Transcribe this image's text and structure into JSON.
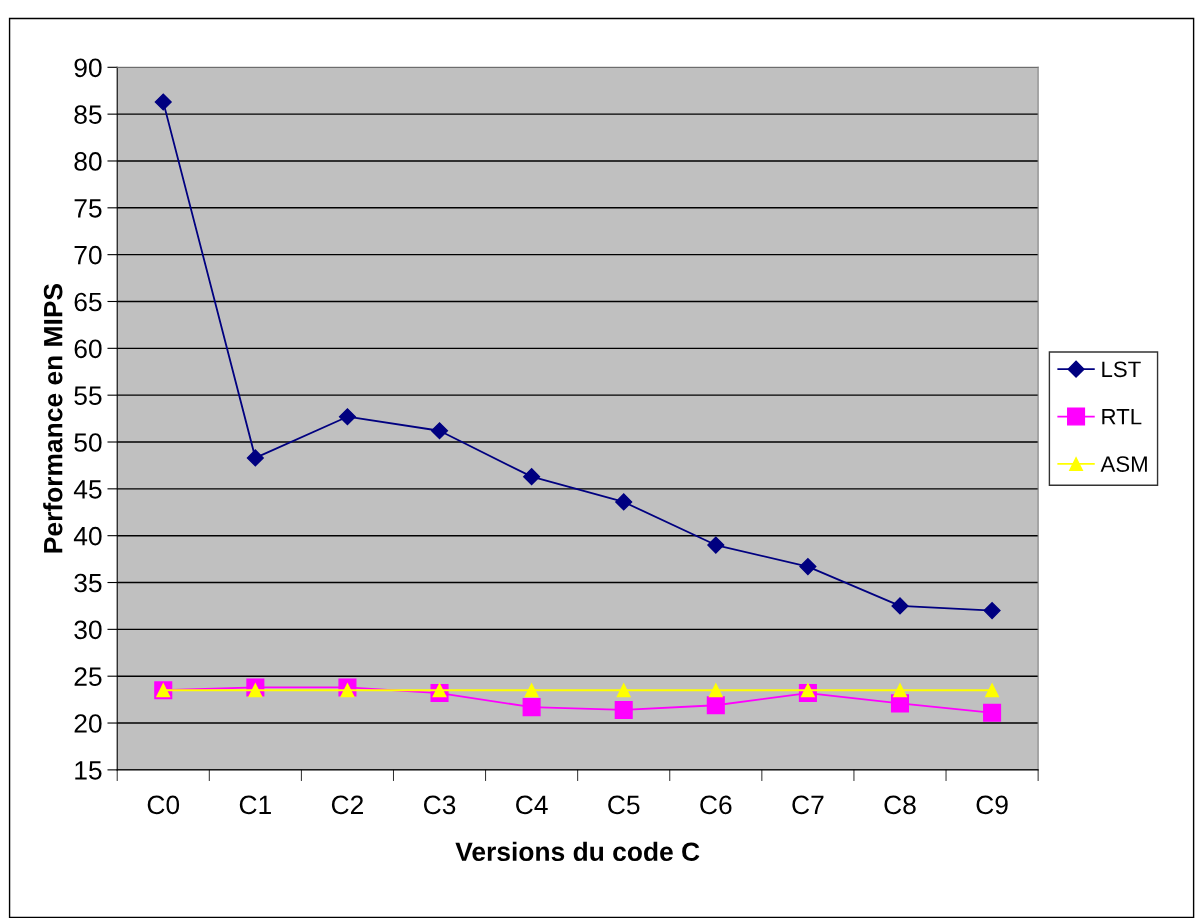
{
  "chart_data": {
    "type": "line",
    "xlabel": "Versions du code C",
    "ylabel": "Performance en MIPS",
    "categories": [
      "C0",
      "C1",
      "C2",
      "C3",
      "C4",
      "C5",
      "C6",
      "C7",
      "C8",
      "C9"
    ],
    "series": [
      {
        "name": "LST",
        "color": "#000080",
        "marker": "diamond",
        "values": [
          86.3,
          48.3,
          52.7,
          51.2,
          46.3,
          43.6,
          39.0,
          36.7,
          32.5,
          32.0
        ]
      },
      {
        "name": "RTL",
        "color": "#ff00ff",
        "marker": "square",
        "values": [
          23.5,
          23.8,
          23.8,
          23.2,
          21.7,
          21.4,
          21.9,
          23.2,
          22.1,
          21.1
        ]
      },
      {
        "name": "ASM",
        "color": "#ffff00",
        "marker": "triangle",
        "values": [
          23.5,
          23.5,
          23.5,
          23.5,
          23.5,
          23.5,
          23.5,
          23.5,
          23.5,
          23.5
        ]
      }
    ],
    "ylim": [
      15,
      90
    ],
    "yticks": [
      15,
      20,
      25,
      30,
      35,
      40,
      45,
      50,
      55,
      60,
      65,
      70,
      75,
      80,
      85,
      90
    ],
    "grid": "y",
    "legend": "right",
    "line_style": "solid"
  }
}
